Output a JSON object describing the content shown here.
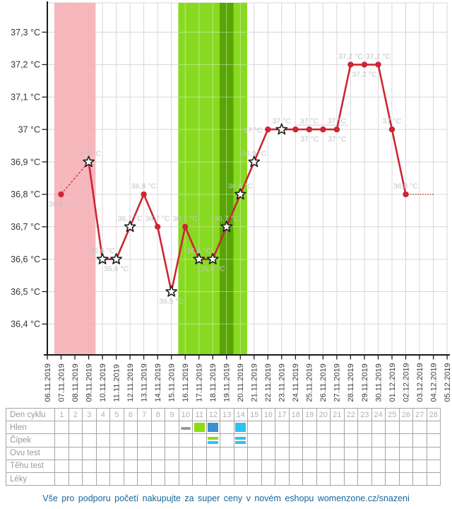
{
  "chart_data": {
    "type": "line",
    "unit": "°C",
    "x": [
      "06.11.2019",
      "07.11.2019",
      "08.11.2019",
      "09.11.2019",
      "10.11.2019",
      "11.11.2019",
      "12.11.2019",
      "13.11.2019",
      "14.11.2019",
      "15.11.2019",
      "16.11.2019",
      "17.11.2019",
      "18.11.2019",
      "19.11.2019",
      "20.11.2019",
      "21.11.2019",
      "22.11.2019",
      "23.11.2019",
      "24.11.2019",
      "25.11.2019",
      "26.11.2019",
      "27.11.2019",
      "28.11.2019",
      "29.11.2019",
      "30.11.2019",
      "01.12.2019",
      "02.12.2019",
      "03.12.2019",
      "04.12.2019",
      "05.12.2019"
    ],
    "y_ticks": [
      {
        "value": 37.3,
        "label": "37,3 °C"
      },
      {
        "value": 37.2,
        "label": "37,2 °C"
      },
      {
        "value": 37.1,
        "label": "37,1 °C"
      },
      {
        "value": 37.0,
        "label": "37 °C"
      },
      {
        "value": 36.9,
        "label": "36,9 °C"
      },
      {
        "value": 36.8,
        "label": "36,8 °C"
      },
      {
        "value": 36.7,
        "label": "36,7 °C"
      },
      {
        "value": 36.6,
        "label": "36,6 °C"
      },
      {
        "value": 36.5,
        "label": "36,5 °C"
      },
      {
        "value": 36.4,
        "label": "36,4 °C"
      }
    ],
    "series": [
      {
        "name": "basal-temperature",
        "points": [
          {
            "i": 1,
            "date": "07.11.2019",
            "v": 36.8,
            "label": "36,8 °C",
            "marker": "dot",
            "pos": "below"
          },
          {
            "i": 3,
            "date": "09.11.2019",
            "v": 36.9,
            "label": "36,9 °C",
            "marker": "star",
            "pos": "above"
          },
          {
            "i": 4,
            "date": "10.11.2019",
            "v": 36.6,
            "label": "36,6 °C",
            "marker": "star",
            "pos": "above"
          },
          {
            "i": 5,
            "date": "11.11.2019",
            "v": 36.6,
            "label": "36,6 °C",
            "marker": "star",
            "pos": "below"
          },
          {
            "i": 6,
            "date": "12.11.2019",
            "v": 36.7,
            "label": "36,7 °C",
            "marker": "star",
            "pos": "above"
          },
          {
            "i": 7,
            "date": "13.11.2019",
            "v": 36.8,
            "label": "36,8 °C",
            "marker": "dot",
            "pos": "above"
          },
          {
            "i": 8,
            "date": "14.11.2019",
            "v": 36.7,
            "label": "36,7 °C",
            "marker": "dot",
            "pos": "above"
          },
          {
            "i": 9,
            "date": "15.11.2019",
            "v": 36.5,
            "label": "36,5 °C",
            "marker": "star",
            "pos": "below"
          },
          {
            "i": 10,
            "date": "16.11.2019",
            "v": 36.7,
            "label": "36,7 °C",
            "marker": "dot",
            "pos": "above"
          },
          {
            "i": 11,
            "date": "17.11.2019",
            "v": 36.6,
            "label": "36,6 °C",
            "marker": "star",
            "pos": "above"
          },
          {
            "i": 12,
            "date": "18.11.2019",
            "v": 36.6,
            "label": "36,6 °C",
            "marker": "star",
            "pos": "below"
          },
          {
            "i": 13,
            "date": "19.11.2019",
            "v": 36.7,
            "label": "36,7 °C",
            "marker": "star",
            "pos": "above"
          },
          {
            "i": 14,
            "date": "20.11.2019",
            "v": 36.8,
            "label": "36,8 °C",
            "marker": "star",
            "pos": "above"
          },
          {
            "i": 15,
            "date": "21.11.2019",
            "v": 36.9,
            "label": "36,9 °C",
            "marker": "star",
            "pos": "above"
          },
          {
            "i": 16,
            "date": "22.11.2019",
            "v": 37.0,
            "label": "37 °C",
            "marker": "dot",
            "pos": "left"
          },
          {
            "i": 17,
            "date": "23.11.2019",
            "v": 37.0,
            "label": "37 °C",
            "marker": "star",
            "pos": "above"
          },
          {
            "i": 18,
            "date": "24.11.2019",
            "v": 37.0,
            "label": "37 °C",
            "marker": "dot",
            "pos": "below",
            "dx": 20
          },
          {
            "i": 19,
            "date": "25.11.2019",
            "v": 37.0,
            "label": "37 °C",
            "marker": "dot",
            "pos": "above"
          },
          {
            "i": 20,
            "date": "26.11.2019",
            "v": 37.0,
            "label": "37 °C",
            "marker": "dot",
            "pos": "below",
            "dx": 20
          },
          {
            "i": 21,
            "date": "27.11.2019",
            "v": 37.0,
            "label": "37 °C",
            "marker": "dot",
            "pos": "above"
          },
          {
            "i": 22,
            "date": "28.11.2019",
            "v": 37.2,
            "label": "37,2 °C",
            "marker": "dot",
            "pos": "above"
          },
          {
            "i": 23,
            "date": "29.11.2019",
            "v": 37.2,
            "label": "37,2 °C",
            "marker": "dot",
            "pos": "below"
          },
          {
            "i": 24,
            "date": "30.11.2019",
            "v": 37.2,
            "label": "37,2 °C",
            "marker": "dot",
            "pos": "above"
          },
          {
            "i": 25,
            "date": "01.12.2019",
            "v": 37.0,
            "label": "37 °C",
            "marker": "dot",
            "pos": "above"
          },
          {
            "i": 26,
            "date": "02.12.2019",
            "v": 36.8,
            "label": "36,8 °C",
            "marker": "dot",
            "pos": "above"
          }
        ]
      }
    ],
    "gaps": [
      {
        "from": 1,
        "to": 3
      }
    ],
    "forecast": {
      "from": 26,
      "to": 28,
      "value": 36.8
    },
    "bands": [
      {
        "name": "menstruation",
        "from": 1,
        "to": 3,
        "color": "#f5aeb3"
      },
      {
        "name": "fertile-window",
        "from": 10,
        "to": 14,
        "color": "#76d400"
      },
      {
        "name": "ovulation-day",
        "from": 13,
        "to": 13,
        "color": "#4f9e00"
      }
    ],
    "colors": {
      "line": "#cc2633",
      "marker_dot": "#cc2633",
      "star_fill": "#ffffff",
      "star_stroke": "#1f1f1f",
      "point_label": "#c3c3c3",
      "grid": "#d7d7d7",
      "axis": "#1a1a1a",
      "tick_label": "#333333",
      "date_label": "#3b3b3b"
    }
  },
  "table": {
    "row_labels": [
      "Den cyklu",
      "Hlen",
      "Čípek",
      "Ovu test",
      "Těhu test",
      "Léky"
    ],
    "cycle_days": [
      "1",
      "2",
      "3",
      "4",
      "5",
      "6",
      "7",
      "8",
      "9",
      "10",
      "11",
      "12",
      "13",
      "14",
      "15",
      "16",
      "17",
      "18",
      "19",
      "20",
      "21",
      "22",
      "23",
      "24",
      "25",
      "26",
      "27",
      "28"
    ],
    "hlen_marks": [
      {
        "day": 10,
        "type": "dash",
        "color": "#999999"
      },
      {
        "day": 11,
        "type": "square",
        "color": "#8bdc10"
      },
      {
        "day": 12,
        "type": "square",
        "color": "#3e8fd0"
      },
      {
        "day": 14,
        "type": "square",
        "color": "#2ac4f0"
      }
    ],
    "cipek_marks": [
      {
        "day": 12,
        "colors": [
          "#8bdc10",
          "#2ac4f0"
        ]
      },
      {
        "day": 14,
        "colors": [
          "#2ac4f0",
          "#2ac4f0"
        ]
      }
    ]
  },
  "footer": {
    "text": "Vše pro podporu početí nakupujte za super ceny v novém eshopu womenzone.cz/snazeni"
  }
}
